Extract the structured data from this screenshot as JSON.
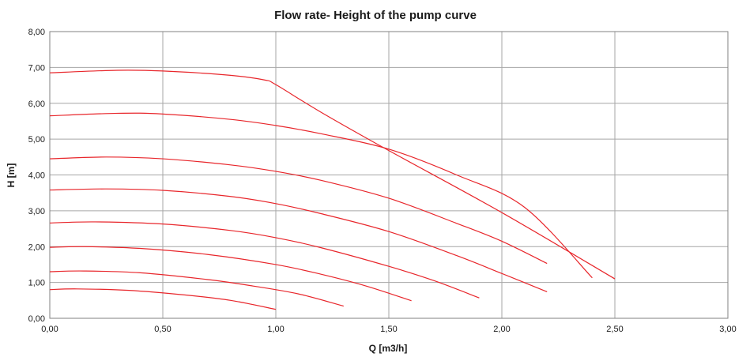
{
  "chart_data": {
    "type": "line",
    "title": "Flow rate- Height of the pump curve",
    "xlabel": "Q [m3/h]",
    "ylabel": "H [m]",
    "xlim": [
      0,
      3
    ],
    "ylim": [
      0,
      8
    ],
    "x_ticks": [
      "0,00",
      "0,50",
      "1,00",
      "1,50",
      "2,00",
      "2,50",
      "3,00"
    ],
    "y_ticks": [
      "0,00",
      "1,00",
      "2,00",
      "3,00",
      "4,00",
      "5,00",
      "6,00",
      "7,00",
      "8,00"
    ],
    "x_tick_values": [
      0,
      0.5,
      1,
      1.5,
      2,
      2.5,
      3
    ],
    "y_tick_values": [
      0,
      1,
      2,
      3,
      4,
      5,
      6,
      7,
      8
    ],
    "grid": true,
    "line_color": "#e8262b",
    "series": [
      {
        "points": [
          [
            0,
            6.85
          ],
          [
            0.3,
            6.92
          ],
          [
            0.5,
            6.9
          ],
          [
            0.8,
            6.78
          ],
          [
            0.95,
            6.65
          ],
          [
            1.0,
            6.52
          ],
          [
            1.2,
            5.75
          ],
          [
            1.5,
            4.68
          ],
          [
            2.0,
            2.95
          ],
          [
            2.5,
            1.1
          ]
        ]
      },
      {
        "points": [
          [
            0,
            5.65
          ],
          [
            0.3,
            5.72
          ],
          [
            0.5,
            5.7
          ],
          [
            0.8,
            5.55
          ],
          [
            1.0,
            5.38
          ],
          [
            1.2,
            5.15
          ],
          [
            1.5,
            4.72
          ],
          [
            1.8,
            4.0
          ],
          [
            2.1,
            3.1
          ],
          [
            2.4,
            1.13
          ]
        ]
      },
      {
        "points": [
          [
            0,
            4.45
          ],
          [
            0.25,
            4.5
          ],
          [
            0.5,
            4.45
          ],
          [
            0.8,
            4.28
          ],
          [
            1.0,
            4.1
          ],
          [
            1.2,
            3.85
          ],
          [
            1.5,
            3.35
          ],
          [
            1.8,
            2.65
          ],
          [
            2.0,
            2.15
          ],
          [
            2.2,
            1.53
          ]
        ]
      },
      {
        "points": [
          [
            0,
            3.58
          ],
          [
            0.25,
            3.61
          ],
          [
            0.5,
            3.57
          ],
          [
            0.8,
            3.4
          ],
          [
            1.0,
            3.2
          ],
          [
            1.2,
            2.92
          ],
          [
            1.5,
            2.42
          ],
          [
            1.8,
            1.75
          ],
          [
            2.0,
            1.25
          ],
          [
            2.2,
            0.74
          ]
        ]
      },
      {
        "points": [
          [
            0,
            2.66
          ],
          [
            0.2,
            2.69
          ],
          [
            0.5,
            2.63
          ],
          [
            0.8,
            2.45
          ],
          [
            1.0,
            2.25
          ],
          [
            1.2,
            1.97
          ],
          [
            1.5,
            1.45
          ],
          [
            1.7,
            1.05
          ],
          [
            1.9,
            0.57
          ]
        ]
      },
      {
        "points": [
          [
            0,
            1.98
          ],
          [
            0.15,
            2.0
          ],
          [
            0.4,
            1.95
          ],
          [
            0.7,
            1.78
          ],
          [
            1.0,
            1.5
          ],
          [
            1.2,
            1.23
          ],
          [
            1.4,
            0.9
          ],
          [
            1.6,
            0.49
          ]
        ]
      },
      {
        "points": [
          [
            0,
            1.3
          ],
          [
            0.15,
            1.32
          ],
          [
            0.4,
            1.27
          ],
          [
            0.7,
            1.08
          ],
          [
            0.9,
            0.9
          ],
          [
            1.1,
            0.68
          ],
          [
            1.3,
            0.34
          ]
        ]
      },
      {
        "points": [
          [
            0,
            0.8
          ],
          [
            0.12,
            0.82
          ],
          [
            0.35,
            0.78
          ],
          [
            0.6,
            0.65
          ],
          [
            0.8,
            0.5
          ],
          [
            1.0,
            0.25
          ]
        ]
      }
    ]
  }
}
